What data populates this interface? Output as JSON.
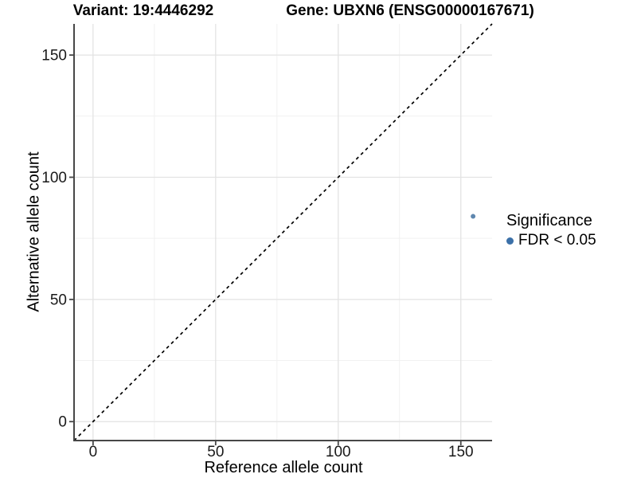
{
  "title": {
    "variant": "Variant: 19:4446292",
    "gene": "Gene: UBXN6 (ENSG00000167671)"
  },
  "axes": {
    "x_label": "Reference allele count",
    "y_label": "Alternative allele count"
  },
  "legend": {
    "title": "Significance",
    "items": [
      {
        "label": "FDR < 0.05",
        "color": "#3b70a8"
      }
    ]
  },
  "chart_data": {
    "type": "scatter",
    "title_left": "Variant: 19:4446292",
    "title_right": "Gene: UBXN6 (ENSG00000167671)",
    "xlabel": "Reference allele count",
    "ylabel": "Alternative allele count",
    "xlim": [
      -7.75,
      162.75
    ],
    "ylim": [
      -7.75,
      162.75
    ],
    "x_ticks": [
      0,
      50,
      100,
      150
    ],
    "y_ticks": [
      0,
      50,
      100,
      150
    ],
    "x_minor_ticks": [
      25,
      75,
      125
    ],
    "y_minor_ticks": [
      25,
      75,
      125
    ],
    "grid": "major+minor",
    "legend_position": "right",
    "points": [
      {
        "x": 155,
        "y": 84,
        "series": "FDR < 0.05",
        "color": "#5f87af"
      }
    ],
    "reference_line": {
      "slope": 1,
      "intercept": 0,
      "style": "dashed",
      "color": "#000000"
    }
  },
  "colors": {
    "background": "#ffffff",
    "grid_major": "#e3e3e3",
    "grid_minor": "#f1f1f1",
    "axis_line": "#474747",
    "tick_text": "#1a1a1a",
    "point": "#5f87af",
    "legend_point": "#3b70a8"
  }
}
